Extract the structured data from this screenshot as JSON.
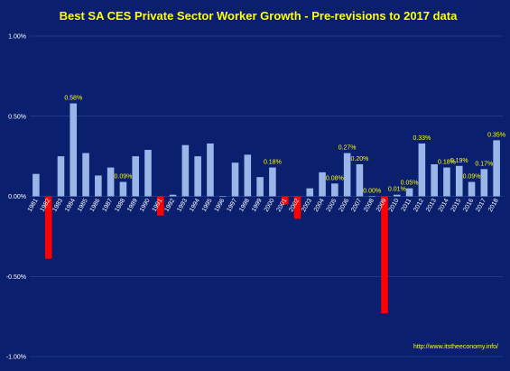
{
  "chart_data": {
    "type": "bar",
    "title": "Best SA CES Private Sector Worker Growth - Pre-revisions to 2017 data",
    "xlabel": "",
    "ylabel": "",
    "ylim": [
      -1.0,
      1.0
    ],
    "yticks": [
      -1.0,
      -0.5,
      0.0,
      0.5,
      1.0
    ],
    "ytick_labels": [
      "-1.00%",
      "-0.50%",
      "0.00%",
      "0.50%",
      "1.00%"
    ],
    "grid": true,
    "legend": "none",
    "categories": [
      "1981",
      "1982",
      "1983",
      "1984",
      "1985",
      "1986",
      "1987",
      "1988",
      "1989",
      "1990",
      "1991",
      "1992",
      "1993",
      "1994",
      "1995",
      "1996",
      "1997",
      "1998",
      "1999",
      "2000",
      "2001",
      "2002",
      "2003",
      "2004",
      "2005",
      "2006",
      "2007",
      "2008",
      "2009",
      "2010",
      "2011",
      "2012",
      "2013",
      "2014",
      "2015",
      "2016",
      "2017",
      "2018"
    ],
    "values": [
      0.14,
      -0.39,
      0.25,
      0.58,
      0.27,
      0.13,
      0.18,
      0.09,
      0.25,
      0.29,
      -0.12,
      0.01,
      0.32,
      0.25,
      0.33,
      0.0,
      0.21,
      0.26,
      0.12,
      0.18,
      -0.05,
      -0.14,
      0.05,
      0.15,
      0.08,
      0.27,
      0.2,
      0.0,
      -0.73,
      0.01,
      0.05,
      0.33,
      0.2,
      0.18,
      0.19,
      0.09,
      0.17,
      0.35
    ],
    "data_labels": {
      "1984": "0.58%",
      "1988": "0.09%",
      "2000": "0.18%",
      "2005": "0.08%",
      "2006": "0.27%",
      "2007": "0.20%",
      "2008": "0.00%",
      "2010": "0.01%",
      "2011": "0.05%",
      "2012": "0.33%",
      "2014": "0.18%",
      "2015": "0.19%",
      "2016": "0.09%",
      "2017": "0.17%",
      "2018": "0.35%"
    },
    "colors": {
      "positive": "#9ab6e8",
      "negative": "#ff0000",
      "background": "#0a1f6e",
      "grid": "#3550a0",
      "title": "#ffff00",
      "text": "#ffffff",
      "label": "#ffff00"
    }
  },
  "source_text": "http://www.itstheeconomy.info/"
}
